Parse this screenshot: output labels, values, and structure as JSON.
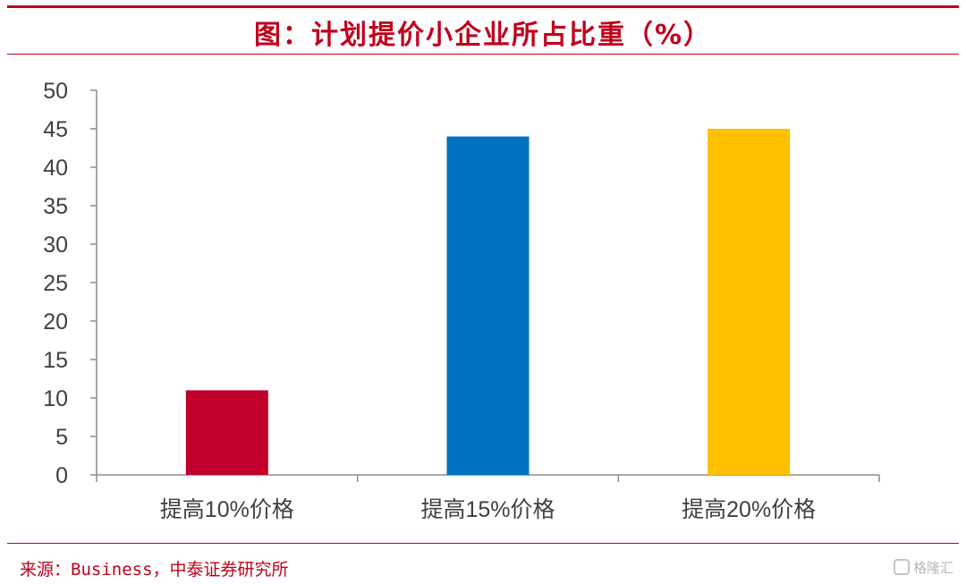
{
  "title": "图：计划提价小企业所占比重（%）",
  "source": "来源：Business，中泰证券研究所",
  "watermark": "格隆汇",
  "colors": {
    "accent": "#c0001c"
  },
  "chart_data": {
    "type": "bar",
    "categories": [
      "提高10%价格",
      "提高15%价格",
      "提高20%价格"
    ],
    "values": [
      11,
      44,
      45
    ],
    "bar_colors": [
      "#c0002a",
      "#0070c0",
      "#ffc000"
    ],
    "yticks": [
      0,
      5,
      10,
      15,
      20,
      25,
      30,
      35,
      40,
      45,
      50
    ],
    "ylim": [
      0,
      50
    ],
    "grid": false,
    "legend": "none"
  }
}
